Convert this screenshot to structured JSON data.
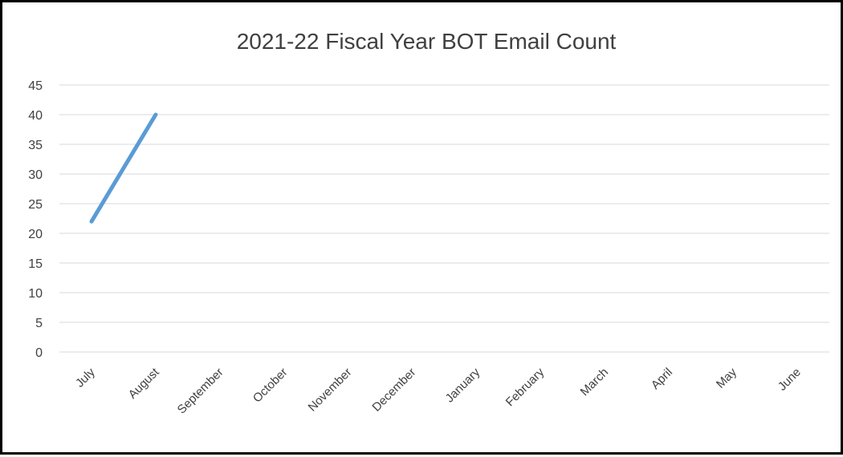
{
  "chart_data": {
    "type": "line",
    "title": "2021-22 Fiscal Year BOT Email Count",
    "xlabel": "",
    "ylabel": "",
    "categories": [
      "July",
      "August",
      "September",
      "October",
      "November",
      "December",
      "January",
      "February",
      "March",
      "April",
      "May",
      "June"
    ],
    "series": [
      {
        "values": [
          22,
          40,
          null,
          null,
          null,
          null,
          null,
          null,
          null,
          null,
          null,
          null
        ],
        "color": "#5b9bd5"
      }
    ],
    "ylim": [
      0,
      45
    ],
    "yticks": [
      "0",
      "5",
      "10",
      "15",
      "20",
      "25",
      "30",
      "35",
      "40",
      "45"
    ],
    "grid": true,
    "legend": "none"
  }
}
